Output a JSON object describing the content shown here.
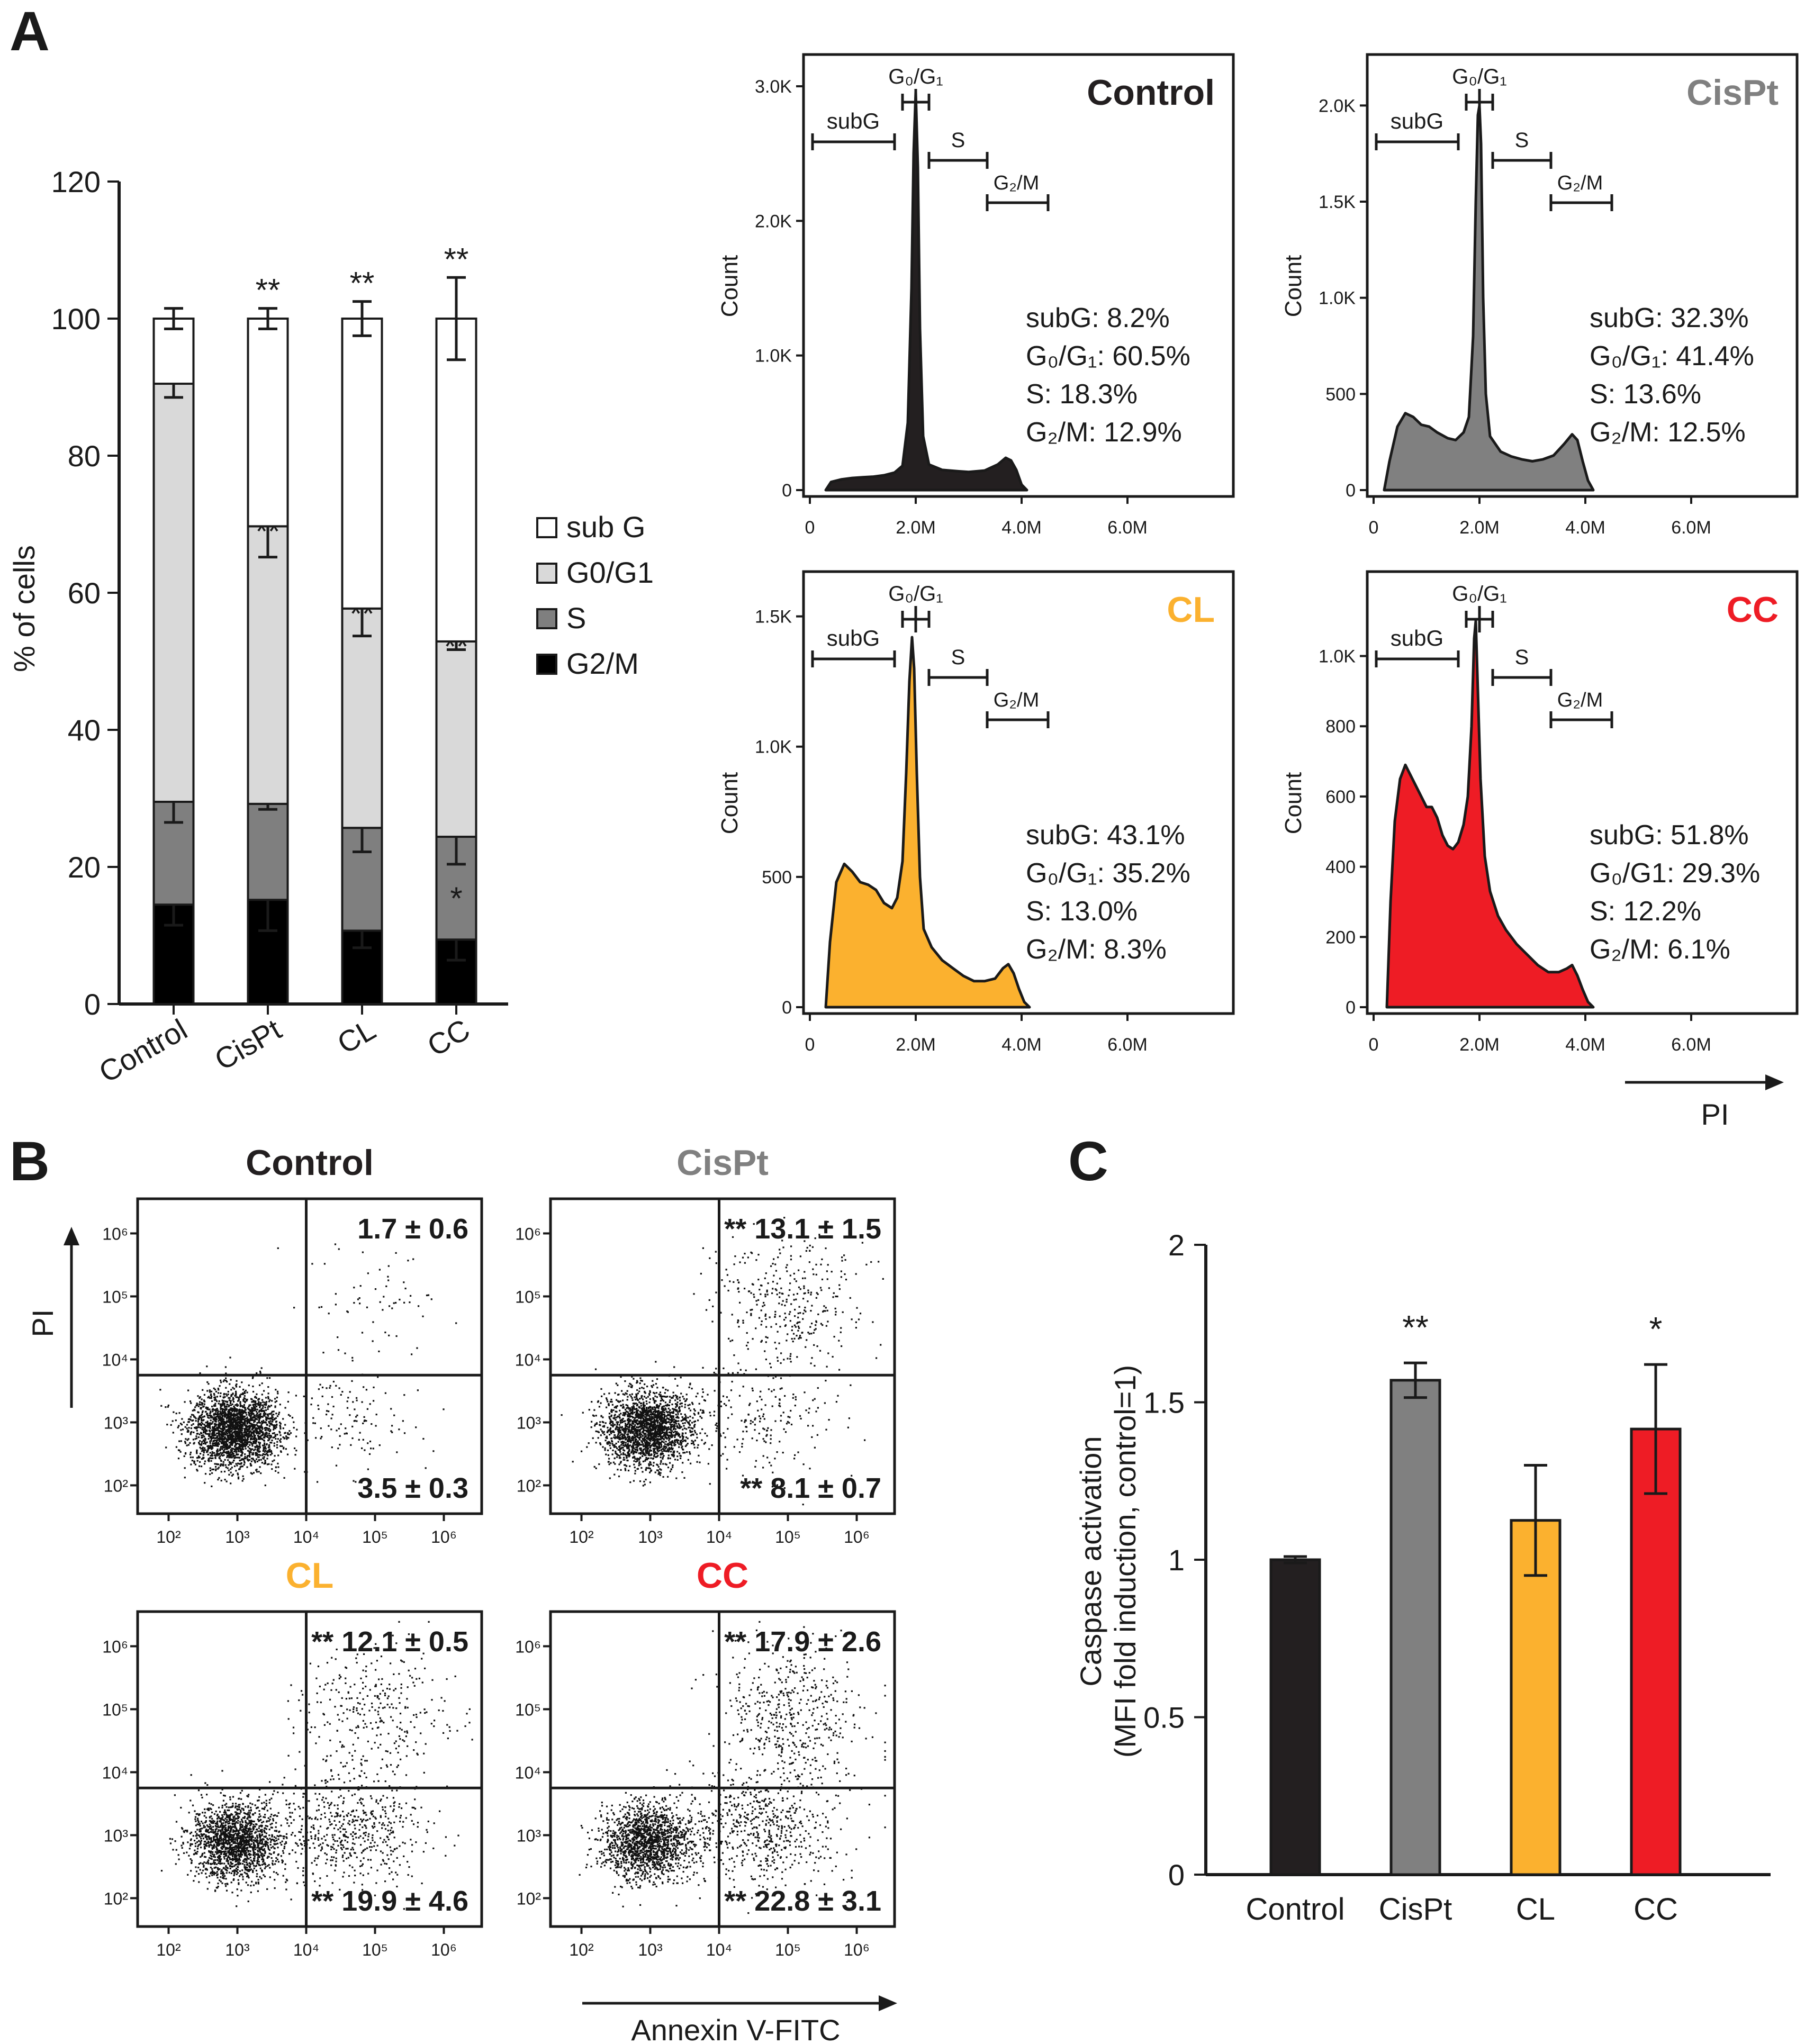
{
  "colors": {
    "control": "#231f20",
    "cispt": "#808080",
    "cl": "#fbb12f",
    "cc": "#ee1c25",
    "subG": "#ffffff",
    "G0G1": "#d9d9d9",
    "S": "#7f7f7f",
    "G2M": "#000000"
  },
  "panel_labels": {
    "a": "A",
    "b": "B",
    "c": "C"
  },
  "chart_data": [
    {
      "id": "A-bar",
      "type": "bar",
      "stacked": true,
      "categories": [
        "Control",
        "CisPt",
        "CL",
        "CC"
      ],
      "ylabel": "% of cells",
      "ylim": [
        0,
        120
      ],
      "yticks": [
        "0",
        "20",
        "40",
        "60",
        "80",
        "100",
        "120"
      ],
      "legend_position": "right",
      "series": [
        {
          "name": "G2/M",
          "values": [
            14.5,
            15.2,
            10.7,
            9.4
          ],
          "errors": [
            3.0,
            4.5,
            2.5,
            3.0
          ],
          "stars": [
            "",
            "",
            "",
            ""
          ]
        },
        {
          "name": "S",
          "values": [
            15.0,
            14.0,
            15.0,
            15.0
          ],
          "errors": [
            3.0,
            0.8,
            3.5,
            4.0
          ],
          "stars": [
            "",
            "",
            "",
            "*"
          ]
        },
        {
          "name": "G0/G1",
          "values": [
            61.0,
            40.5,
            32.0,
            28.5
          ],
          "errors": [
            2.0,
            4.5,
            4.0,
            1.2
          ],
          "stars": [
            "",
            "**",
            "**",
            "**"
          ]
        },
        {
          "name": "sub G",
          "values": [
            9.5,
            30.3,
            42.3,
            47.1
          ],
          "errors": [
            1.5,
            1.5,
            2.5,
            6.0
          ],
          "stars": [
            "",
            "**",
            "**",
            "**"
          ]
        }
      ],
      "legend_labels": [
        "sub G",
        "G0/G1",
        "S",
        "G2/M"
      ]
    },
    {
      "id": "A-histograms",
      "type": "area",
      "xlabel": "PI",
      "ylabel": "Count",
      "xticks": [
        "0",
        "2.0M",
        "4.0M",
        "6.0M"
      ],
      "x_units": "M",
      "gate_labels": {
        "subG": "subG",
        "g0g1": "G₀/G₁",
        "s": "S",
        "g2m": "G₂/M"
      },
      "panels": [
        {
          "title": "Control",
          "ymax": 3000,
          "yticks": [
            {
              "v": 0,
              "t": "0"
            },
            {
              "v": 1000,
              "t": "1.0K"
            },
            {
              "v": 2000,
              "t": "2.0K"
            },
            {
              "v": 3000,
              "t": "3.0K"
            }
          ],
          "stats": [
            "subG: 8.2%",
            "G₀/G₁: 60.5%",
            "S: 18.3%",
            "G₂/M: 12.9%"
          ],
          "points": [
            [
              0.3,
              0
            ],
            [
              0.4,
              60
            ],
            [
              0.6,
              80
            ],
            [
              0.8,
              90
            ],
            [
              1.0,
              95
            ],
            [
              1.2,
              100
            ],
            [
              1.4,
              110
            ],
            [
              1.6,
              130
            ],
            [
              1.75,
              180
            ],
            [
              1.85,
              500
            ],
            [
              1.92,
              1500
            ],
            [
              1.96,
              2500
            ],
            [
              2.0,
              2960
            ],
            [
              2.04,
              2400
            ],
            [
              2.08,
              1200
            ],
            [
              2.14,
              400
            ],
            [
              2.25,
              190
            ],
            [
              2.5,
              150
            ],
            [
              2.8,
              140
            ],
            [
              3.0,
              135
            ],
            [
              3.3,
              145
            ],
            [
              3.55,
              190
            ],
            [
              3.7,
              240
            ],
            [
              3.8,
              220
            ],
            [
              3.9,
              150
            ],
            [
              4.0,
              40
            ],
            [
              4.1,
              0
            ]
          ]
        },
        {
          "title": "CisPt",
          "ymax": 2100,
          "yticks": [
            {
              "v": 0,
              "t": "0"
            },
            {
              "v": 500,
              "t": "500"
            },
            {
              "v": 1000,
              "t": "1.0K"
            },
            {
              "v": 1500,
              "t": "1.5K"
            },
            {
              "v": 2000,
              "t": "2.0K"
            }
          ],
          "stats": [
            "subG: 32.3%",
            "G₀/G₁: 41.4%",
            "S: 13.6%",
            "G₂/M: 12.5%"
          ],
          "points": [
            [
              0.2,
              0
            ],
            [
              0.3,
              150
            ],
            [
              0.45,
              330
            ],
            [
              0.6,
              400
            ],
            [
              0.75,
              380
            ],
            [
              0.9,
              340
            ],
            [
              1.05,
              330
            ],
            [
              1.2,
              300
            ],
            [
              1.4,
              270
            ],
            [
              1.55,
              260
            ],
            [
              1.7,
              300
            ],
            [
              1.8,
              380
            ],
            [
              1.88,
              800
            ],
            [
              1.93,
              1500
            ],
            [
              1.97,
              1950
            ],
            [
              2.0,
              2000
            ],
            [
              2.03,
              1800
            ],
            [
              2.07,
              1000
            ],
            [
              2.12,
              500
            ],
            [
              2.2,
              280
            ],
            [
              2.4,
              200
            ],
            [
              2.6,
              175
            ],
            [
              2.8,
              160
            ],
            [
              3.0,
              150
            ],
            [
              3.2,
              160
            ],
            [
              3.4,
              180
            ],
            [
              3.6,
              240
            ],
            [
              3.75,
              290
            ],
            [
              3.85,
              260
            ],
            [
              3.95,
              150
            ],
            [
              4.05,
              50
            ],
            [
              4.15,
              0
            ]
          ]
        },
        {
          "title": "CL",
          "ymax": 1550,
          "yticks": [
            {
              "v": 0,
              "t": "0"
            },
            {
              "v": 500,
              "t": "500"
            },
            {
              "v": 1000,
              "t": "1.0K"
            },
            {
              "v": 1500,
              "t": "1.5K"
            }
          ],
          "stats": [
            "subG: 43.1%",
            "G₀/G₁: 35.2%",
            "S: 13.0%",
            "G₂/M: 8.3%"
          ],
          "points": [
            [
              0.3,
              0
            ],
            [
              0.38,
              250
            ],
            [
              0.5,
              480
            ],
            [
              0.65,
              550
            ],
            [
              0.8,
              520
            ],
            [
              0.95,
              480
            ],
            [
              1.1,
              470
            ],
            [
              1.25,
              450
            ],
            [
              1.4,
              400
            ],
            [
              1.55,
              380
            ],
            [
              1.65,
              420
            ],
            [
              1.75,
              560
            ],
            [
              1.82,
              900
            ],
            [
              1.88,
              1250
            ],
            [
              1.93,
              1420
            ],
            [
              1.97,
              1300
            ],
            [
              2.02,
              900
            ],
            [
              2.08,
              500
            ],
            [
              2.15,
              300
            ],
            [
              2.3,
              230
            ],
            [
              2.5,
              180
            ],
            [
              2.7,
              150
            ],
            [
              2.9,
              120
            ],
            [
              3.1,
              100
            ],
            [
              3.3,
              100
            ],
            [
              3.5,
              110
            ],
            [
              3.65,
              150
            ],
            [
              3.75,
              165
            ],
            [
              3.85,
              130
            ],
            [
              3.95,
              70
            ],
            [
              4.05,
              20
            ],
            [
              4.15,
              0
            ]
          ]
        },
        {
          "title": "CC",
          "ymax": 1150,
          "yticks": [
            {
              "v": 0,
              "t": "0"
            },
            {
              "v": 200,
              "t": "200"
            },
            {
              "v": 400,
              "t": "400"
            },
            {
              "v": 600,
              "t": "600"
            },
            {
              "v": 800,
              "t": "800"
            },
            {
              "v": 1000,
              "t": "1.0K"
            }
          ],
          "stats": [
            "subG: 51.8%",
            "G₀/G1: 29.3%",
            "S: 12.2%",
            "G₂/M: 6.1%"
          ],
          "points": [
            [
              0.25,
              0
            ],
            [
              0.32,
              300
            ],
            [
              0.4,
              530
            ],
            [
              0.5,
              650
            ],
            [
              0.6,
              690
            ],
            [
              0.7,
              660
            ],
            [
              0.8,
              630
            ],
            [
              0.9,
              600
            ],
            [
              1.0,
              570
            ],
            [
              1.1,
              570
            ],
            [
              1.2,
              540
            ],
            [
              1.3,
              490
            ],
            [
              1.4,
              460
            ],
            [
              1.5,
              450
            ],
            [
              1.6,
              470
            ],
            [
              1.7,
              520
            ],
            [
              1.78,
              600
            ],
            [
              1.85,
              800
            ],
            [
              1.9,
              1050
            ],
            [
              1.93,
              1100
            ],
            [
              1.97,
              900
            ],
            [
              2.02,
              650
            ],
            [
              2.1,
              430
            ],
            [
              2.2,
              330
            ],
            [
              2.35,
              260
            ],
            [
              2.5,
              220
            ],
            [
              2.7,
              180
            ],
            [
              2.9,
              150
            ],
            [
              3.1,
              120
            ],
            [
              3.3,
              100
            ],
            [
              3.5,
              100
            ],
            [
              3.65,
              110
            ],
            [
              3.75,
              120
            ],
            [
              3.85,
              90
            ],
            [
              3.95,
              50
            ],
            [
              4.05,
              15
            ],
            [
              4.15,
              0
            ]
          ]
        }
      ]
    },
    {
      "id": "B-scatter",
      "type": "scatter",
      "xlabel": "Annexin V-FITC",
      "ylabel": "PI",
      "log_scale": true,
      "tick_labels": [
        "10²",
        "10³",
        "10⁴",
        "10⁵",
        "10⁶"
      ],
      "panels": [
        {
          "title": "Control",
          "upper_right": "1.7 ± 0.6",
          "lower_right": "3.5 ± 0.3",
          "upper_stars": "",
          "lower_stars": "",
          "apoptotic_fraction": 0.05,
          "late_fraction": 0.02
        },
        {
          "title": "CisPt",
          "upper_right": "13.1 ± 1.5",
          "lower_right": "8.1 ± 0.7",
          "upper_stars": "**",
          "lower_stars": "**",
          "apoptotic_fraction": 0.08,
          "late_fraction": 0.13
        },
        {
          "title": "CL",
          "upper_right": "12.1 ± 0.5",
          "lower_right": "19.9 ± 4.6",
          "upper_stars": "**",
          "lower_stars": "**",
          "apoptotic_fraction": 0.2,
          "late_fraction": 0.12
        },
        {
          "title": "CC",
          "upper_right": "17.9 ± 2.6",
          "lower_right": "22.8 ± 3.1",
          "upper_stars": "**",
          "lower_stars": "**",
          "apoptotic_fraction": 0.23,
          "late_fraction": 0.18
        }
      ]
    },
    {
      "id": "C-bar",
      "type": "bar",
      "categories": [
        "Control",
        "CisPt",
        "CL",
        "CC"
      ],
      "values": [
        1.0,
        1.57,
        1.125,
        1.415
      ],
      "errors": [
        0.01,
        0.055,
        0.175,
        0.205
      ],
      "stars": [
        "",
        "**",
        "",
        "*"
      ],
      "ylabel": "Caspase activation",
      "ylabel2": "(MFI fold induction, control=1)",
      "ylim": [
        0,
        2
      ],
      "yticks": [
        "0",
        "0.5",
        "1",
        "1.5",
        "2"
      ]
    }
  ]
}
